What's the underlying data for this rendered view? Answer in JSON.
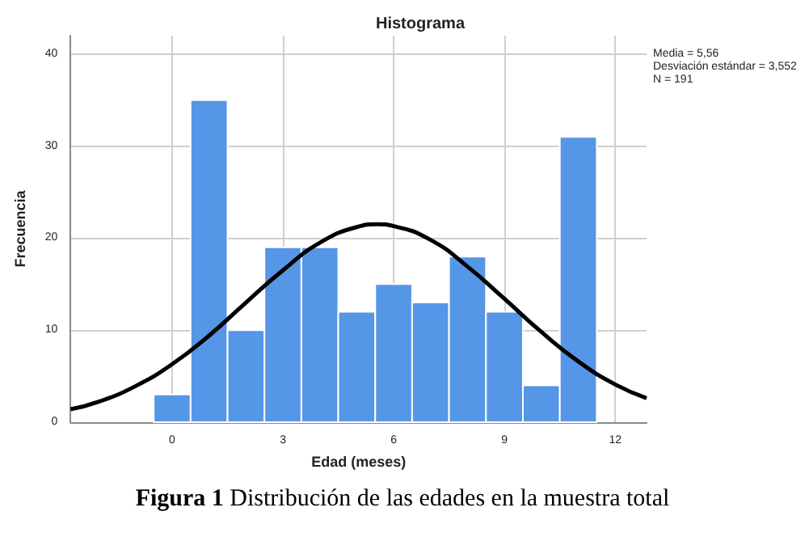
{
  "chart_data": {
    "type": "histogram",
    "title": "Histograma",
    "xlabel": "Edad (meses)",
    "ylabel": "Frecuencia",
    "bins": [
      -0.5,
      0.5,
      1.5,
      2.5,
      3.5,
      4.5,
      5.5,
      6.5,
      7.5,
      8.5,
      9.5,
      10.5,
      11.5
    ],
    "values": [
      3,
      35,
      10,
      19,
      19,
      12,
      15,
      13,
      18,
      12,
      4,
      31
    ],
    "color": "#5596e6",
    "series": [
      {
        "type": "line",
        "color": "#000000",
        "x": [
          -2.75,
          -2,
          -1,
          0,
          1,
          2,
          3,
          4,
          5,
          5.56,
          6,
          7,
          8,
          9,
          10,
          11,
          12,
          12.85
        ],
        "values": [
          1.4,
          2.2,
          3.9,
          6.3,
          9.4,
          13.0,
          16.5,
          19.5,
          21.2,
          21.5,
          21.3,
          19.8,
          16.9,
          13.4,
          9.8,
          6.6,
          4.1,
          2.6
        ]
      }
    ],
    "marker": "none",
    "xlim": [
      -2.75,
      12.85
    ],
    "xticks": [
      0,
      3,
      6,
      9,
      12
    ],
    "ylim": [
      0,
      42
    ],
    "yticks": [
      0,
      10,
      20,
      30,
      40
    ],
    "grid": true,
    "annotations": [
      "Media = 5,56",
      "Desviación estándar = 3,552",
      "N = 191",
      "Figura 1 Distribución de las edades en la muestra total"
    ]
  }
}
